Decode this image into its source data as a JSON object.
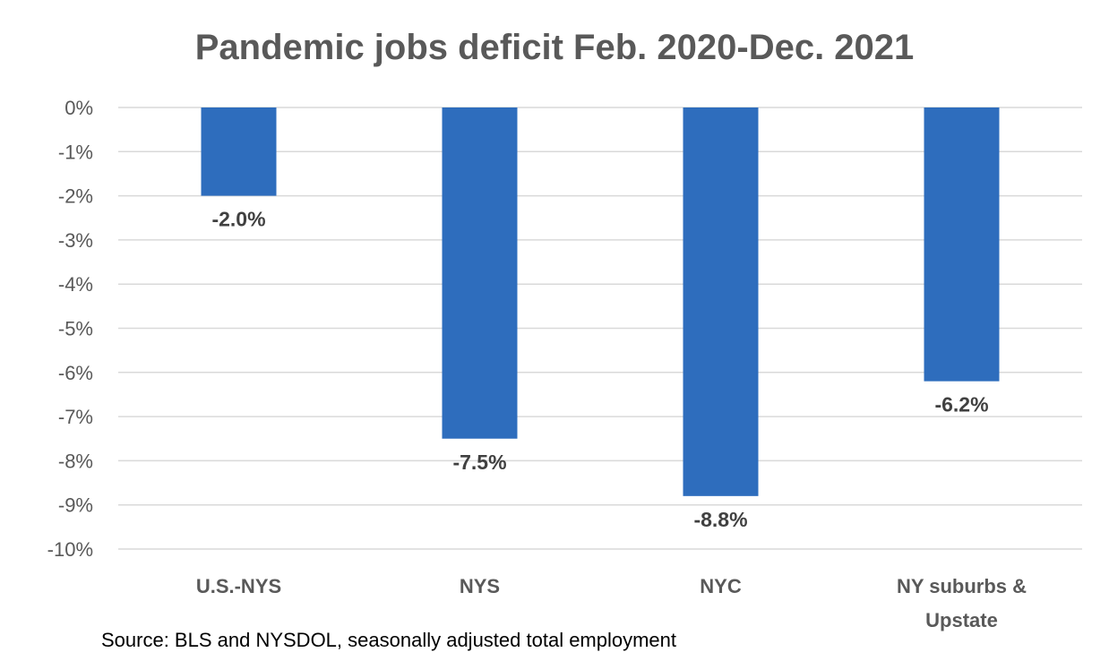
{
  "chart_data": {
    "type": "bar",
    "title": "Pandemic jobs deficit Feb. 2020-Dec. 2021",
    "categories": [
      "U.S.-NYS",
      "NYS",
      "NYC",
      "NY suburbs & Upstate"
    ],
    "category_lines": [
      [
        "U.S.-NYS"
      ],
      [
        "NYS"
      ],
      [
        "NYC"
      ],
      [
        "NY suburbs &",
        "Upstate"
      ]
    ],
    "values": [
      -2.0,
      -7.5,
      -8.8,
      -6.2
    ],
    "data_labels": [
      "-2.0%",
      "-7.5%",
      "-8.8%",
      "-6.2%"
    ],
    "ylim": [
      -10,
      0
    ],
    "yticks": [
      0,
      -1,
      -2,
      -3,
      -4,
      -5,
      -6,
      -7,
      -8,
      -9,
      -10
    ],
    "ytick_labels": [
      "0%",
      "-1%",
      "-2%",
      "-3%",
      "-4%",
      "-5%",
      "-6%",
      "-7%",
      "-8%",
      "-9%",
      "-10%"
    ],
    "xlabel": "",
    "ylabel": "",
    "grid": true,
    "legend": "none",
    "bar_color": "#2E6DBD",
    "grid_color": "#D9D9D9"
  },
  "source": "Source: BLS and NYSDOL, seasonally adjusted total employment"
}
